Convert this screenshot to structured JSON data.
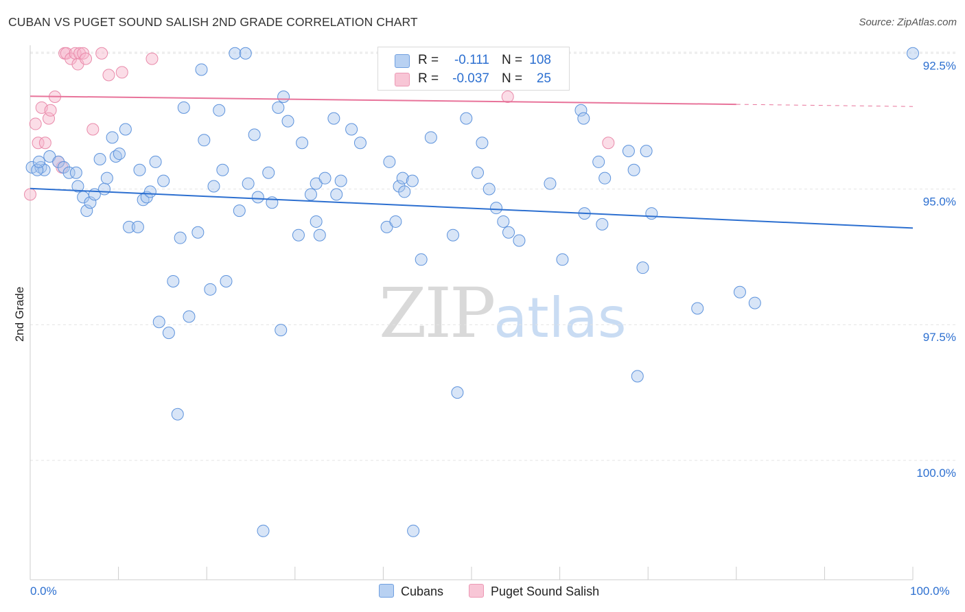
{
  "header": {
    "title": "CUBAN VS PUGET SOUND SALISH 2ND GRADE CORRELATION CHART",
    "source": "Source: ZipAtlas.com"
  },
  "watermark": {
    "zip": "ZIP",
    "atlas": "atlas"
  },
  "legend": {
    "rows": [
      {
        "r_label": "R =",
        "r_value": "-0.111",
        "n_label": "N =",
        "n_value": "108"
      },
      {
        "r_label": "R =",
        "r_value": "-0.037",
        "n_label": "N =",
        "n_value": "25"
      }
    ]
  },
  "bottom_legend": {
    "series_a": "Cubans",
    "series_b": "Puget Sound Salish"
  },
  "axes": {
    "ylabel": "2nd Grade",
    "x_min_label": "0.0%",
    "x_max_label": "100.0%",
    "y_ticks": [
      "100.0%",
      "97.5%",
      "95.0%",
      "92.5%"
    ]
  },
  "colors": {
    "blue": "#2c6fd0",
    "blue_fill": "#b8d1f2",
    "pink": "#e8739a",
    "pink_fill": "#f8c6d6"
  },
  "chart_data": {
    "type": "scatter",
    "title": "CUBAN VS PUGET SOUND SALISH 2ND GRADE CORRELATION CHART",
    "xlabel": "",
    "ylabel": "2nd Grade",
    "xlim": [
      0,
      100
    ],
    "ylim": [
      90.3,
      100.3
    ],
    "y_ticks": [
      92.5,
      95.0,
      97.5,
      100.0
    ],
    "grid": "horizontal dashed",
    "legend_placement": "top-center",
    "series": [
      {
        "name": "Cubans",
        "color": "#2c6fd0",
        "r": -0.111,
        "n": 108,
        "trend": {
          "x": [
            0,
            100
          ],
          "y": [
            97.51,
            96.78
          ]
        },
        "points": [
          [
            0.2,
            97.9
          ],
          [
            1.2,
            97.9
          ],
          [
            1.6,
            97.85
          ],
          [
            2.2,
            98.1
          ],
          [
            3.2,
            98.0
          ],
          [
            3.8,
            97.9
          ],
          [
            4.4,
            97.8
          ],
          [
            5.2,
            97.8
          ],
          [
            5.4,
            97.55
          ],
          [
            6.0,
            97.35
          ],
          [
            6.4,
            97.1
          ],
          [
            6.8,
            97.25
          ],
          [
            7.3,
            97.4
          ],
          [
            7.9,
            98.05
          ],
          [
            8.4,
            97.5
          ],
          [
            8.7,
            97.7
          ],
          [
            9.3,
            98.45
          ],
          [
            9.7,
            98.1
          ],
          [
            10.1,
            98.15
          ],
          [
            10.8,
            98.6
          ],
          [
            11.2,
            96.8
          ],
          [
            12.2,
            96.8
          ],
          [
            12.4,
            97.85
          ],
          [
            12.8,
            97.3
          ],
          [
            13.2,
            97.35
          ],
          [
            13.6,
            97.45
          ],
          [
            14.2,
            98.0
          ],
          [
            14.6,
            95.05
          ],
          [
            15.1,
            97.65
          ],
          [
            15.7,
            94.85
          ],
          [
            16.2,
            95.8
          ],
          [
            16.7,
            93.35
          ],
          [
            17.0,
            96.6
          ],
          [
            17.4,
            99.0
          ],
          [
            18.0,
            95.15
          ],
          [
            19.0,
            96.7
          ],
          [
            19.4,
            99.7
          ],
          [
            19.7,
            98.4
          ],
          [
            20.4,
            95.65
          ],
          [
            20.8,
            97.55
          ],
          [
            21.4,
            98.95
          ],
          [
            21.8,
            97.85
          ],
          [
            22.2,
            95.8
          ],
          [
            23.2,
            100.0
          ],
          [
            23.7,
            97.1
          ],
          [
            24.4,
            100.0
          ],
          [
            24.7,
            97.6
          ],
          [
            25.4,
            98.5
          ],
          [
            25.8,
            97.35
          ],
          [
            26.4,
            91.2
          ],
          [
            27.0,
            97.8
          ],
          [
            27.4,
            97.25
          ],
          [
            28.1,
            99.0
          ],
          [
            28.4,
            94.9
          ],
          [
            28.7,
            99.2
          ],
          [
            29.2,
            98.75
          ],
          [
            30.4,
            96.65
          ],
          [
            30.8,
            98.35
          ],
          [
            31.8,
            97.4
          ],
          [
            32.4,
            96.9
          ],
          [
            32.8,
            96.65
          ],
          [
            32.4,
            97.6
          ],
          [
            33.4,
            97.7
          ],
          [
            34.4,
            98.8
          ],
          [
            34.7,
            97.4
          ],
          [
            35.2,
            97.65
          ],
          [
            36.4,
            98.6
          ],
          [
            37.4,
            98.35
          ],
          [
            40.4,
            96.8
          ],
          [
            40.7,
            98.0
          ],
          [
            41.4,
            96.9
          ],
          [
            41.8,
            97.55
          ],
          [
            42.2,
            97.7
          ],
          [
            42.4,
            97.45
          ],
          [
            43.3,
            97.65
          ],
          [
            43.4,
            91.2
          ],
          [
            44.3,
            96.2
          ],
          [
            45.4,
            98.45
          ],
          [
            47.9,
            96.65
          ],
          [
            48.4,
            93.75
          ],
          [
            49.4,
            98.8
          ],
          [
            50.7,
            97.8
          ],
          [
            51.2,
            98.35
          ],
          [
            52.0,
            97.5
          ],
          [
            52.8,
            97.15
          ],
          [
            53.6,
            96.9
          ],
          [
            54.2,
            96.7
          ],
          [
            55.4,
            96.55
          ],
          [
            58.9,
            97.6
          ],
          [
            60.3,
            96.2
          ],
          [
            62.4,
            98.95
          ],
          [
            62.7,
            98.8
          ],
          [
            62.8,
            97.05
          ],
          [
            64.4,
            98.0
          ],
          [
            64.8,
            96.85
          ],
          [
            65.1,
            97.7
          ],
          [
            67.8,
            98.2
          ],
          [
            68.4,
            97.85
          ],
          [
            68.8,
            94.05
          ],
          [
            69.4,
            96.05
          ],
          [
            69.8,
            98.2
          ],
          [
            70.4,
            97.05
          ],
          [
            75.6,
            95.3
          ],
          [
            80.4,
            95.6
          ],
          [
            82.1,
            95.4
          ],
          [
            100.0,
            100.0
          ],
          [
            0.8,
            97.85
          ],
          [
            1.0,
            98.0
          ]
        ]
      },
      {
        "name": "Puget Sound Salish",
        "color": "#e8739a",
        "r": -0.037,
        "n": 25,
        "trend": {
          "x": [
            0,
            80
          ],
          "y": [
            99.21,
            99.06
          ],
          "extended_to": [
            100,
            99.02
          ]
        },
        "points": [
          [
            0.0,
            97.4
          ],
          [
            0.6,
            98.7
          ],
          [
            0.9,
            98.35
          ],
          [
            1.3,
            99.0
          ],
          [
            1.7,
            98.35
          ],
          [
            2.1,
            98.8
          ],
          [
            2.3,
            98.95
          ],
          [
            2.8,
            99.2
          ],
          [
            3.6,
            97.9
          ],
          [
            3.9,
            100.0
          ],
          [
            4.1,
            100.0
          ],
          [
            4.6,
            99.9
          ],
          [
            5.1,
            100.0
          ],
          [
            5.4,
            99.8
          ],
          [
            5.6,
            100.0
          ],
          [
            6.0,
            100.0
          ],
          [
            6.3,
            99.9
          ],
          [
            7.1,
            98.6
          ],
          [
            8.1,
            100.0
          ],
          [
            8.9,
            99.6
          ],
          [
            10.4,
            99.65
          ],
          [
            13.8,
            99.9
          ],
          [
            54.1,
            99.2
          ],
          [
            65.5,
            98.35
          ],
          [
            3.2,
            98.0
          ]
        ]
      }
    ]
  }
}
